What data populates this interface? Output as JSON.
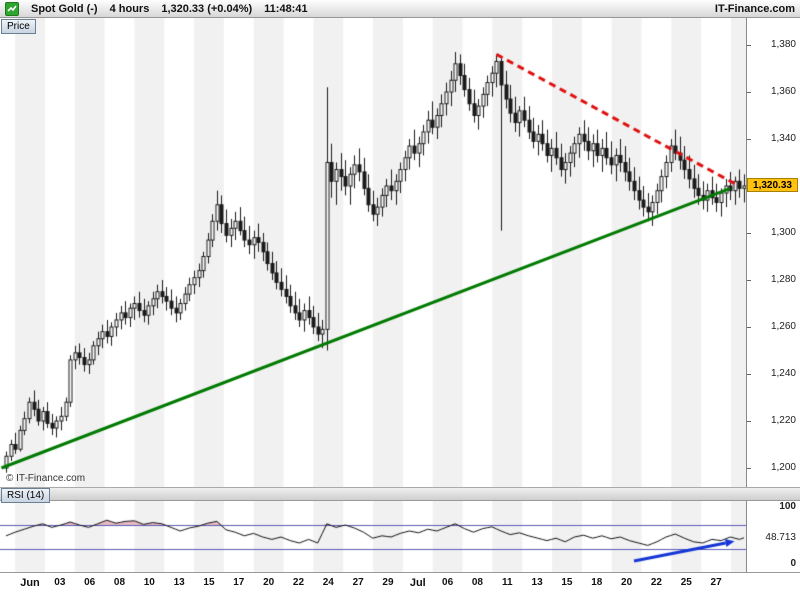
{
  "header": {
    "symbol": "Spot Gold (-)",
    "timeframe": "4 hours",
    "last": "1,320.33 (+0.04%)",
    "clock": "11:48:41",
    "brand": "IT-Finance.com"
  },
  "price_panel": {
    "tab": "Price",
    "copyright": "© IT-Finance.com",
    "last_price_tag": "1,320.33"
  },
  "rsi_panel": {
    "tab": "RSI (14)",
    "axis_top": "100",
    "axis_bottom": "0",
    "value_label": "48.713"
  },
  "chart_data": {
    "type": "candlestick",
    "instrument": "Spot Gold",
    "timeframe": "4 hours",
    "last_price": 1320.33,
    "price_axis": {
      "ylim": [
        1192,
        1392
      ],
      "ticks": [
        {
          "v": 1380,
          "label": "1,380"
        },
        {
          "v": 1360,
          "label": "1,360"
        },
        {
          "v": 1340,
          "label": "1,340"
        },
        {
          "v": 1320,
          "label": "1,320"
        },
        {
          "v": 1300,
          "label": "1,300"
        },
        {
          "v": 1280,
          "label": "1,280"
        },
        {
          "v": 1260,
          "label": "1,260"
        },
        {
          "v": 1240,
          "label": "1,240"
        },
        {
          "v": 1220,
          "label": "1,220"
        },
        {
          "v": 1200,
          "label": "1,200"
        }
      ]
    },
    "x_labels": [
      "Jun",
      "03",
      "06",
      "08",
      "10",
      "13",
      "15",
      "17",
      "20",
      "22",
      "24",
      "27",
      "29",
      "Jul",
      "06",
      "08",
      "11",
      "13",
      "15",
      "18",
      "20",
      "22",
      "25",
      "27"
    ],
    "colors": {
      "stripe": "#f1f1f1",
      "up_candle": "#ffffff",
      "down_candle": "#1a1a1a",
      "wick": "#1a1a1a",
      "rsi_line": "#111111",
      "rsi_band": "#5b5bb5",
      "rsi_fill": "#e7bac4",
      "price_tag_bg": "#ffc20e"
    },
    "candles_ohlc": [
      [
        1200,
        1207,
        1198,
        1205
      ],
      [
        1205,
        1212,
        1203,
        1210
      ],
      [
        1210,
        1215,
        1206,
        1208
      ],
      [
        1208,
        1218,
        1207,
        1216
      ],
      [
        1216,
        1224,
        1214,
        1221
      ],
      [
        1221,
        1230,
        1219,
        1228
      ],
      [
        1228,
        1233,
        1222,
        1225
      ],
      [
        1225,
        1229,
        1218,
        1220
      ],
      [
        1220,
        1226,
        1216,
        1224
      ],
      [
        1224,
        1228,
        1217,
        1219
      ],
      [
        1219,
        1223,
        1214,
        1217
      ],
      [
        1217,
        1222,
        1213,
        1220
      ],
      [
        1220,
        1226,
        1216,
        1222
      ],
      [
        1222,
        1230,
        1220,
        1228
      ],
      [
        1228,
        1248,
        1226,
        1246
      ],
      [
        1246,
        1252,
        1242,
        1249
      ],
      [
        1249,
        1253,
        1244,
        1247
      ],
      [
        1247,
        1251,
        1241,
        1244
      ],
      [
        1244,
        1249,
        1240,
        1246
      ],
      [
        1246,
        1254,
        1244,
        1252
      ],
      [
        1252,
        1258,
        1248,
        1255
      ],
      [
        1255,
        1261,
        1251,
        1258
      ],
      [
        1258,
        1263,
        1253,
        1256
      ],
      [
        1256,
        1262,
        1252,
        1260
      ],
      [
        1260,
        1266,
        1256,
        1263
      ],
      [
        1263,
        1269,
        1259,
        1266
      ],
      [
        1266,
        1271,
        1261,
        1264
      ],
      [
        1264,
        1270,
        1260,
        1268
      ],
      [
        1268,
        1273,
        1263,
        1270
      ],
      [
        1270,
        1275,
        1264,
        1267
      ],
      [
        1267,
        1272,
        1262,
        1265
      ],
      [
        1265,
        1271,
        1261,
        1269
      ],
      [
        1269,
        1275,
        1265,
        1272
      ],
      [
        1272,
        1278,
        1268,
        1275
      ],
      [
        1275,
        1280,
        1270,
        1273
      ],
      [
        1273,
        1277,
        1267,
        1271
      ],
      [
        1271,
        1276,
        1265,
        1268
      ],
      [
        1268,
        1273,
        1262,
        1266
      ],
      [
        1266,
        1272,
        1263,
        1270
      ],
      [
        1270,
        1277,
        1267,
        1274
      ],
      [
        1274,
        1281,
        1271,
        1278
      ],
      [
        1278,
        1284,
        1274,
        1281
      ],
      [
        1281,
        1287,
        1277,
        1284
      ],
      [
        1284,
        1292,
        1281,
        1290
      ],
      [
        1290,
        1300,
        1287,
        1297
      ],
      [
        1297,
        1308,
        1294,
        1305
      ],
      [
        1305,
        1318,
        1301,
        1312
      ],
      [
        1312,
        1316,
        1300,
        1304
      ],
      [
        1304,
        1310,
        1296,
        1299
      ],
      [
        1299,
        1306,
        1294,
        1302
      ],
      [
        1302,
        1309,
        1297,
        1305
      ],
      [
        1305,
        1311,
        1299,
        1301
      ],
      [
        1301,
        1307,
        1294,
        1297
      ],
      [
        1297,
        1303,
        1291,
        1295
      ],
      [
        1295,
        1301,
        1289,
        1298
      ],
      [
        1298,
        1304,
        1292,
        1296
      ],
      [
        1296,
        1300,
        1288,
        1292
      ],
      [
        1292,
        1296,
        1284,
        1287
      ],
      [
        1287,
        1292,
        1280,
        1283
      ],
      [
        1283,
        1288,
        1276,
        1279
      ],
      [
        1279,
        1285,
        1273,
        1276
      ],
      [
        1276,
        1282,
        1270,
        1273
      ],
      [
        1273,
        1278,
        1266,
        1269
      ],
      [
        1269,
        1275,
        1263,
        1266
      ],
      [
        1266,
        1272,
        1260,
        1263
      ],
      [
        1263,
        1270,
        1258,
        1267
      ],
      [
        1267,
        1273,
        1261,
        1264
      ],
      [
        1264,
        1269,
        1257,
        1260
      ],
      [
        1260,
        1266,
        1254,
        1257
      ],
      [
        1257,
        1263,
        1251,
        1259
      ],
      [
        1259,
        1362,
        1250,
        1330
      ],
      [
        1330,
        1338,
        1315,
        1322
      ],
      [
        1322,
        1330,
        1312,
        1327
      ],
      [
        1327,
        1334,
        1318,
        1324
      ],
      [
        1324,
        1331,
        1316,
        1320
      ],
      [
        1320,
        1328,
        1312,
        1325
      ],
      [
        1325,
        1333,
        1319,
        1329
      ],
      [
        1329,
        1336,
        1322,
        1326
      ],
      [
        1326,
        1332,
        1316,
        1319
      ],
      [
        1319,
        1325,
        1309,
        1312
      ],
      [
        1312,
        1318,
        1305,
        1308
      ],
      [
        1308,
        1315,
        1303,
        1311
      ],
      [
        1311,
        1319,
        1307,
        1316
      ],
      [
        1316,
        1323,
        1311,
        1320
      ],
      [
        1320,
        1327,
        1314,
        1318
      ],
      [
        1318,
        1325,
        1312,
        1322
      ],
      [
        1322,
        1330,
        1317,
        1327
      ],
      [
        1327,
        1335,
        1322,
        1332
      ],
      [
        1332,
        1340,
        1327,
        1337
      ],
      [
        1337,
        1344,
        1331,
        1334
      ],
      [
        1334,
        1341,
        1328,
        1338
      ],
      [
        1338,
        1346,
        1333,
        1343
      ],
      [
        1343,
        1352,
        1338,
        1348
      ],
      [
        1348,
        1356,
        1342,
        1345
      ],
      [
        1345,
        1353,
        1340,
        1350
      ],
      [
        1350,
        1359,
        1345,
        1355
      ],
      [
        1355,
        1364,
        1350,
        1360
      ],
      [
        1360,
        1369,
        1354,
        1365
      ],
      [
        1365,
        1377,
        1360,
        1372
      ],
      [
        1372,
        1376,
        1363,
        1367
      ],
      [
        1367,
        1372,
        1358,
        1361
      ],
      [
        1361,
        1366,
        1352,
        1355
      ],
      [
        1355,
        1361,
        1347,
        1350
      ],
      [
        1350,
        1357,
        1344,
        1354
      ],
      [
        1354,
        1362,
        1349,
        1359
      ],
      [
        1359,
        1367,
        1354,
        1364
      ],
      [
        1364,
        1371,
        1358,
        1368
      ],
      [
        1368,
        1376,
        1362,
        1373
      ],
      [
        1373,
        1375,
        1301,
        1363
      ],
      [
        1363,
        1369,
        1353,
        1357
      ],
      [
        1357,
        1363,
        1347,
        1351
      ],
      [
        1351,
        1358,
        1343,
        1347
      ],
      [
        1347,
        1354,
        1341,
        1352
      ],
      [
        1352,
        1358,
        1345,
        1348
      ],
      [
        1348,
        1354,
        1340,
        1343
      ],
      [
        1343,
        1349,
        1336,
        1339
      ],
      [
        1339,
        1346,
        1333,
        1342
      ],
      [
        1342,
        1348,
        1335,
        1338
      ],
      [
        1338,
        1344,
        1330,
        1333
      ],
      [
        1333,
        1340,
        1326,
        1336
      ],
      [
        1336,
        1343,
        1329,
        1332
      ],
      [
        1332,
        1338,
        1324,
        1327
      ],
      [
        1327,
        1334,
        1321,
        1330
      ],
      [
        1330,
        1337,
        1324,
        1334
      ],
      [
        1334,
        1341,
        1328,
        1338
      ],
      [
        1338,
        1345,
        1332,
        1342
      ],
      [
        1342,
        1348,
        1335,
        1339
      ],
      [
        1339,
        1345,
        1331,
        1335
      ],
      [
        1335,
        1342,
        1328,
        1338
      ],
      [
        1338,
        1344,
        1330,
        1333
      ],
      [
        1333,
        1340,
        1326,
        1336
      ],
      [
        1336,
        1343,
        1329,
        1332
      ],
      [
        1332,
        1339,
        1325,
        1329
      ],
      [
        1329,
        1336,
        1322,
        1333
      ],
      [
        1333,
        1340,
        1326,
        1330
      ],
      [
        1330,
        1337,
        1322,
        1326
      ],
      [
        1326,
        1332,
        1318,
        1322
      ],
      [
        1322,
        1328,
        1314,
        1318
      ],
      [
        1318,
        1324,
        1310,
        1314
      ],
      [
        1314,
        1320,
        1307,
        1311
      ],
      [
        1311,
        1317,
        1305,
        1309
      ],
      [
        1309,
        1316,
        1303,
        1313
      ],
      [
        1313,
        1321,
        1308,
        1318
      ],
      [
        1318,
        1327,
        1313,
        1324
      ],
      [
        1324,
        1333,
        1319,
        1330
      ],
      [
        1330,
        1340,
        1326,
        1337
      ],
      [
        1337,
        1344,
        1331,
        1334
      ],
      [
        1334,
        1341,
        1327,
        1331
      ],
      [
        1331,
        1337,
        1323,
        1327
      ],
      [
        1327,
        1333,
        1319,
        1323
      ],
      [
        1323,
        1329,
        1315,
        1319
      ],
      [
        1319,
        1325,
        1312,
        1316
      ],
      [
        1316,
        1322,
        1310,
        1314
      ],
      [
        1314,
        1321,
        1309,
        1318
      ],
      [
        1318,
        1324,
        1312,
        1315
      ],
      [
        1315,
        1321,
        1309,
        1313
      ],
      [
        1313,
        1319,
        1307,
        1317
      ],
      [
        1317,
        1323,
        1311,
        1320
      ],
      [
        1320,
        1326,
        1314,
        1318
      ],
      [
        1318,
        1324,
        1312,
        1322
      ],
      [
        1322,
        1327,
        1315,
        1319
      ],
      [
        1319,
        1325,
        1313,
        1320
      ]
    ],
    "trendlines": [
      {
        "name": "rising-support",
        "color": "#007a00",
        "style": "solid",
        "width": 3,
        "from": {
          "bar": -1,
          "price": 1200
        },
        "to": {
          "bar": 158,
          "price": 1319
        }
      },
      {
        "name": "falling-resistance",
        "color": "#e01010",
        "style": "dashed",
        "width": 3,
        "from": {
          "bar": 107,
          "price": 1376
        },
        "to": {
          "bar": 159,
          "price": 1321
        }
      }
    ],
    "rsi": {
      "period": 14,
      "range": [
        0,
        100
      ],
      "bands": [
        70,
        30
      ],
      "last_value": 48.713,
      "points": [
        [
          0,
          52
        ],
        [
          2,
          58
        ],
        [
          4,
          63
        ],
        [
          6,
          68
        ],
        [
          8,
          72
        ],
        [
          10,
          66
        ],
        [
          12,
          70
        ],
        [
          14,
          75
        ],
        [
          16,
          70
        ],
        [
          18,
          66
        ],
        [
          20,
          72
        ],
        [
          22,
          78
        ],
        [
          24,
          73
        ],
        [
          26,
          76
        ],
        [
          28,
          77
        ],
        [
          30,
          71
        ],
        [
          32,
          74
        ],
        [
          34,
          72
        ],
        [
          36,
          66
        ],
        [
          38,
          60
        ],
        [
          40,
          65
        ],
        [
          42,
          68
        ],
        [
          44,
          73
        ],
        [
          46,
          76
        ],
        [
          48,
          62
        ],
        [
          50,
          58
        ],
        [
          52,
          52
        ],
        [
          54,
          56
        ],
        [
          56,
          50
        ],
        [
          58,
          46
        ],
        [
          60,
          50
        ],
        [
          62,
          44
        ],
        [
          64,
          40
        ],
        [
          66,
          46
        ],
        [
          68,
          40
        ],
        [
          70,
          72
        ],
        [
          72,
          66
        ],
        [
          74,
          70
        ],
        [
          76,
          65
        ],
        [
          78,
          58
        ],
        [
          80,
          48
        ],
        [
          82,
          52
        ],
        [
          84,
          50
        ],
        [
          86,
          56
        ],
        [
          88,
          60
        ],
        [
          90,
          57
        ],
        [
          92,
          63
        ],
        [
          94,
          60
        ],
        [
          96,
          66
        ],
        [
          98,
          72
        ],
        [
          100,
          64
        ],
        [
          102,
          58
        ],
        [
          104,
          64
        ],
        [
          106,
          67
        ],
        [
          108,
          60
        ],
        [
          110,
          54
        ],
        [
          112,
          57
        ],
        [
          114,
          52
        ],
        [
          116,
          48
        ],
        [
          118,
          44
        ],
        [
          120,
          48
        ],
        [
          122,
          42
        ],
        [
          124,
          50
        ],
        [
          126,
          53
        ],
        [
          128,
          48
        ],
        [
          130,
          52
        ],
        [
          132,
          47
        ],
        [
          134,
          50
        ],
        [
          136,
          44
        ],
        [
          138,
          40
        ],
        [
          140,
          36
        ],
        [
          142,
          42
        ],
        [
          144,
          50
        ],
        [
          146,
          55
        ],
        [
          148,
          48
        ],
        [
          150,
          42
        ],
        [
          152,
          40
        ],
        [
          154,
          46
        ],
        [
          156,
          44
        ],
        [
          158,
          50
        ],
        [
          160,
          46
        ],
        [
          161,
          48.7
        ]
      ],
      "trend_arrow": {
        "from": [
          137,
          10
        ],
        "to": [
          157,
          40
        ],
        "color": "#1536d6"
      }
    }
  }
}
